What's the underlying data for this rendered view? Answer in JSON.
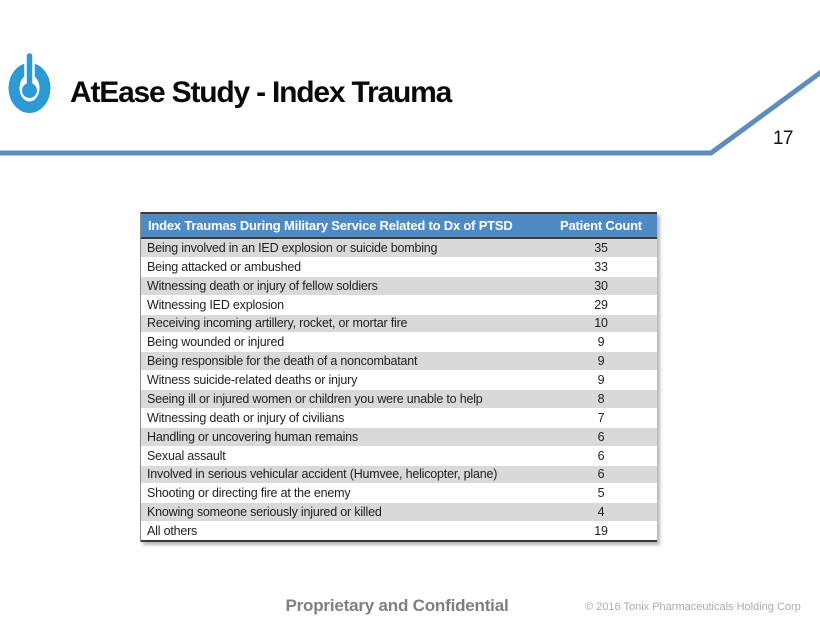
{
  "slide": {
    "title": "AtEase Study - Index Trauma",
    "page_number": "17"
  },
  "table": {
    "headers": {
      "trauma": "Index Traumas During Military Service Related to Dx of PTSD",
      "count": "Patient Count"
    },
    "rows": [
      {
        "label": "Being involved in an IED explosion or suicide bombing",
        "count": "35"
      },
      {
        "label": "Being attacked or ambushed",
        "count": "33"
      },
      {
        "label": "Witnessing death or injury of fellow soldiers",
        "count": "30"
      },
      {
        "label": "Witnessing IED explosion",
        "count": "29"
      },
      {
        "label": "Receiving incoming artillery, rocket, or mortar fire",
        "count": "10"
      },
      {
        "label": "Being wounded or injured",
        "count": "9"
      },
      {
        "label": "Being responsible for the death of a noncombatant",
        "count": "9"
      },
      {
        "label": "Witness suicide-related deaths or injury",
        "count": "9"
      },
      {
        "label": "Seeing ill or injured women or children you were unable to help",
        "count": "8"
      },
      {
        "label": "Witnessing death or injury of civilians",
        "count": "7"
      },
      {
        "label": "Handling or uncovering human remains",
        "count": "6"
      },
      {
        "label": "Sexual assault",
        "count": "6"
      },
      {
        "label": "Involved in serious vehicular accident (Humvee, helicopter, plane)",
        "count": "6"
      },
      {
        "label": "Shooting or directing fire at the enemy",
        "count": "5"
      },
      {
        "label": "Knowing someone seriously injured or killed",
        "count": "4"
      },
      {
        "label": "All others",
        "count": "19"
      }
    ]
  },
  "footer": {
    "confidential": "Proprietary and Confidential",
    "copyright": "© 2016 Tonix Pharmaceuticals Holding Corp"
  },
  "colors": {
    "header_blue": "#4e8bc4",
    "band_gray": "#d9d9d9",
    "accent_line_blue": "#5e8cbf",
    "logo_blue": "#2d9ad5",
    "dark_border": "#3b3b3b"
  },
  "icons": {
    "logo": "tonix-power-button-icon"
  },
  "chart_data": {
    "type": "table",
    "title": "Index Traumas During Military Service Related to Dx of PTSD",
    "columns": [
      "Index Traumas During Military Service Related to Dx of PTSD",
      "Patient Count"
    ],
    "categories": [
      "Being involved in an IED explosion or suicide bombing",
      "Being attacked or ambushed",
      "Witnessing death or injury of fellow soldiers",
      "Witnessing IED explosion",
      "Receiving incoming artillery, rocket, or mortar fire",
      "Being wounded or injured",
      "Being responsible for the death of a noncombatant",
      "Witness suicide-related deaths or injury",
      "Seeing ill or injured women or children you were unable to help",
      "Witnessing death or injury of civilians",
      "Handling or uncovering human remains",
      "Sexual assault",
      "Involved in serious vehicular accident (Humvee, helicopter, plane)",
      "Shooting or directing fire at the enemy",
      "Knowing someone seriously injured or killed",
      "All others"
    ],
    "values": [
      35,
      33,
      30,
      29,
      10,
      9,
      9,
      9,
      8,
      7,
      6,
      6,
      6,
      5,
      4,
      19
    ]
  }
}
